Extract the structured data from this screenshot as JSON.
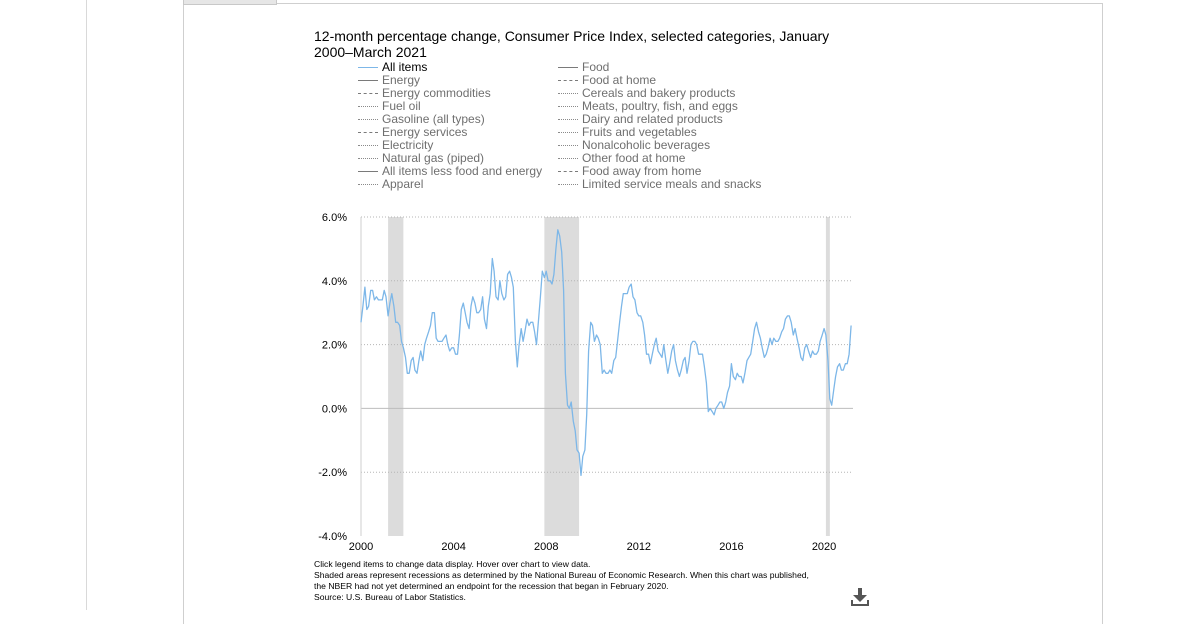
{
  "title": "12-month percentage change, Consumer Price Index, selected categories, January 2000–March 2021",
  "legend": {
    "left": [
      {
        "label": "All items",
        "style": "blue",
        "active": true
      },
      {
        "label": "Energy",
        "style": "solid"
      },
      {
        "label": "Energy commodities",
        "style": "dashed"
      },
      {
        "label": "Fuel oil",
        "style": "dotted"
      },
      {
        "label": "Gasoline (all types)",
        "style": "dotted"
      },
      {
        "label": "Energy services",
        "style": "dashed"
      },
      {
        "label": "Electricity",
        "style": "dotted"
      },
      {
        "label": "Natural gas (piped)",
        "style": "dotted"
      },
      {
        "label": "All items less food and energy",
        "style": "solid"
      },
      {
        "label": "Apparel",
        "style": "dotted"
      }
    ],
    "right": [
      {
        "label": "Food",
        "style": "solid"
      },
      {
        "label": "Food at home",
        "style": "dashed"
      },
      {
        "label": "Cereals and bakery products",
        "style": "dotted"
      },
      {
        "label": "Meats, poultry, fish, and eggs",
        "style": "dotted"
      },
      {
        "label": "Dairy and related products",
        "style": "dotted"
      },
      {
        "label": "Fruits and vegetables",
        "style": "dotted"
      },
      {
        "label": "Nonalcoholic beverages",
        "style": "dotted"
      },
      {
        "label": "Other food at home",
        "style": "dotted"
      },
      {
        "label": "Food away from home",
        "style": "dashed"
      },
      {
        "label": "Limited service meals and snacks",
        "style": "dotted"
      }
    ]
  },
  "notes": {
    "line1": "Click legend items to change data display. Hover over chart to view data.",
    "line2": "Shaded areas represent recessions as determined by the National Bureau of Economic Research. When this chart was published,",
    "line3": "the NBER had not yet determined an endpoint for the recession that began in February 2020.",
    "source": "Source: U.S. Bureau of Labor Statistics."
  },
  "download_icon": "download-icon",
  "colors": {
    "series": "#7db7e8",
    "recession": "#dcdcdc",
    "grid": "#b5b5b5",
    "zero_line": "#bdbdbd"
  },
  "chart_data": {
    "type": "line",
    "ylabel_format": "percent",
    "ylim": [
      -4,
      6
    ],
    "yticks": [
      "6.0%",
      "4.0%",
      "2.0%",
      "0.0%",
      "-2.0%",
      "-4.0%"
    ],
    "ytick_values": [
      6,
      4,
      2,
      0,
      -2,
      -4
    ],
    "xlim": [
      2000.0,
      2021.25
    ],
    "xticks": [
      "2000",
      "2004",
      "2008",
      "2012",
      "2016",
      "2020"
    ],
    "xtick_values": [
      2000,
      2004,
      2008,
      2012,
      2016,
      2020
    ],
    "recessions": [
      [
        2001.17,
        2001.83
      ],
      [
        2007.92,
        2009.42
      ],
      [
        2020.08,
        2020.25
      ]
    ],
    "grid": "horizontal dotted",
    "series": [
      {
        "name": "All items",
        "x": [
          2000.0,
          2000.08,
          2000.17,
          2000.25,
          2000.33,
          2000.42,
          2000.5,
          2000.58,
          2000.67,
          2000.75,
          2000.83,
          2000.92,
          2001.0,
          2001.08,
          2001.17,
          2001.25,
          2001.33,
          2001.42,
          2001.5,
          2001.58,
          2001.67,
          2001.75,
          2001.83,
          2001.92,
          2002.0,
          2002.08,
          2002.17,
          2002.25,
          2002.33,
          2002.42,
          2002.5,
          2002.58,
          2002.67,
          2002.75,
          2002.83,
          2002.92,
          2003.0,
          2003.08,
          2003.17,
          2003.25,
          2003.33,
          2003.42,
          2003.5,
          2003.58,
          2003.67,
          2003.75,
          2003.83,
          2003.92,
          2004.0,
          2004.08,
          2004.17,
          2004.25,
          2004.33,
          2004.42,
          2004.5,
          2004.58,
          2004.67,
          2004.75,
          2004.83,
          2004.92,
          2005.0,
          2005.08,
          2005.17,
          2005.25,
          2005.33,
          2005.42,
          2005.5,
          2005.58,
          2005.67,
          2005.75,
          2005.83,
          2005.92,
          2006.0,
          2006.08,
          2006.17,
          2006.25,
          2006.33,
          2006.42,
          2006.5,
          2006.58,
          2006.67,
          2006.75,
          2006.83,
          2006.92,
          2007.0,
          2007.08,
          2007.17,
          2007.25,
          2007.33,
          2007.42,
          2007.5,
          2007.58,
          2007.67,
          2007.75,
          2007.83,
          2007.92,
          2008.0,
          2008.08,
          2008.17,
          2008.25,
          2008.33,
          2008.42,
          2008.5,
          2008.58,
          2008.67,
          2008.75,
          2008.83,
          2008.92,
          2009.0,
          2009.08,
          2009.17,
          2009.25,
          2009.33,
          2009.42,
          2009.5,
          2009.58,
          2009.67,
          2009.75,
          2009.83,
          2009.92,
          2010.0,
          2010.08,
          2010.17,
          2010.25,
          2010.33,
          2010.42,
          2010.5,
          2010.58,
          2010.67,
          2010.75,
          2010.83,
          2010.92,
          2011.0,
          2011.08,
          2011.17,
          2011.25,
          2011.33,
          2011.42,
          2011.5,
          2011.58,
          2011.67,
          2011.75,
          2011.83,
          2011.92,
          2012.0,
          2012.08,
          2012.17,
          2012.25,
          2012.33,
          2012.42,
          2012.5,
          2012.58,
          2012.67,
          2012.75,
          2012.83,
          2012.92,
          2013.0,
          2013.08,
          2013.17,
          2013.25,
          2013.33,
          2013.42,
          2013.5,
          2013.58,
          2013.67,
          2013.75,
          2013.83,
          2013.92,
          2014.0,
          2014.08,
          2014.17,
          2014.25,
          2014.33,
          2014.42,
          2014.5,
          2014.58,
          2014.67,
          2014.75,
          2014.83,
          2014.92,
          2015.0,
          2015.08,
          2015.17,
          2015.25,
          2015.33,
          2015.42,
          2015.5,
          2015.58,
          2015.67,
          2015.75,
          2015.83,
          2015.92,
          2016.0,
          2016.08,
          2016.17,
          2016.25,
          2016.33,
          2016.42,
          2016.5,
          2016.58,
          2016.67,
          2016.75,
          2016.83,
          2016.92,
          2017.0,
          2017.08,
          2017.17,
          2017.25,
          2017.33,
          2017.42,
          2017.5,
          2017.58,
          2017.67,
          2017.75,
          2017.83,
          2017.92,
          2018.0,
          2018.08,
          2018.17,
          2018.25,
          2018.33,
          2018.42,
          2018.5,
          2018.58,
          2018.67,
          2018.75,
          2018.83,
          2018.92,
          2019.0,
          2019.08,
          2019.17,
          2019.25,
          2019.33,
          2019.42,
          2019.5,
          2019.58,
          2019.67,
          2019.75,
          2019.83,
          2019.92,
          2020.0,
          2020.08,
          2020.17,
          2020.25,
          2020.33,
          2020.42,
          2020.5,
          2020.58,
          2020.67,
          2020.75,
          2020.83,
          2020.92,
          2021.0,
          2021.08,
          2021.17
        ],
        "values": [
          2.7,
          3.2,
          3.8,
          3.1,
          3.2,
          3.7,
          3.7,
          3.4,
          3.5,
          3.4,
          3.4,
          3.4,
          3.7,
          3.5,
          2.9,
          3.3,
          3.6,
          3.2,
          2.7,
          2.7,
          2.6,
          2.1,
          1.9,
          1.6,
          1.1,
          1.1,
          1.5,
          1.6,
          1.2,
          1.1,
          1.5,
          1.8,
          1.5,
          2.0,
          2.2,
          2.4,
          2.6,
          3.0,
          3.0,
          2.2,
          2.1,
          2.1,
          2.1,
          2.2,
          2.3,
          2.0,
          1.8,
          1.9,
          1.9,
          1.7,
          1.7,
          2.3,
          3.1,
          3.3,
          3.0,
          2.7,
          2.5,
          3.2,
          3.5,
          3.3,
          3.0,
          3.0,
          3.1,
          3.5,
          2.8,
          2.5,
          3.2,
          3.6,
          4.7,
          4.3,
          3.5,
          3.4,
          4.0,
          3.6,
          3.4,
          3.5,
          4.2,
          4.3,
          4.1,
          3.8,
          2.1,
          1.3,
          2.0,
          2.5,
          2.1,
          2.4,
          2.8,
          2.6,
          2.7,
          2.7,
          2.4,
          2.0,
          2.8,
          3.5,
          4.3,
          4.1,
          4.3,
          4.0,
          4.0,
          3.9,
          4.2,
          5.0,
          5.6,
          5.4,
          4.9,
          3.7,
          1.1,
          0.1,
          0.0,
          0.2,
          -0.4,
          -0.7,
          -1.3,
          -1.4,
          -2.1,
          -1.5,
          -1.3,
          -0.2,
          1.8,
          2.7,
          2.6,
          2.1,
          2.3,
          2.2,
          2.0,
          1.1,
          1.2,
          1.1,
          1.1,
          1.2,
          1.1,
          1.5,
          1.6,
          2.1,
          2.7,
          3.2,
          3.6,
          3.6,
          3.6,
          3.8,
          3.9,
          3.5,
          3.4,
          3.0,
          2.9,
          2.9,
          2.7,
          2.3,
          1.7,
          1.7,
          1.4,
          1.7,
          2.0,
          2.2,
          1.8,
          1.7,
          1.6,
          2.0,
          1.5,
          1.1,
          1.4,
          1.8,
          2.0,
          1.5,
          1.2,
          1.0,
          1.2,
          1.5,
          1.6,
          1.1,
          1.5,
          2.0,
          2.1,
          2.1,
          2.0,
          1.7,
          1.7,
          1.7,
          1.3,
          0.8,
          -0.1,
          0.0,
          -0.1,
          -0.2,
          0.0,
          0.1,
          0.2,
          0.2,
          0.0,
          0.2,
          0.5,
          0.7,
          1.4,
          1.0,
          0.9,
          1.1,
          1.0,
          1.0,
          0.8,
          1.1,
          1.5,
          1.6,
          1.7,
          2.1,
          2.5,
          2.7,
          2.4,
          2.2,
          1.9,
          1.6,
          1.7,
          1.9,
          2.2,
          2.0,
          2.2,
          2.1,
          2.1,
          2.2,
          2.4,
          2.5,
          2.8,
          2.9,
          2.9,
          2.7,
          2.3,
          2.5,
          2.2,
          1.9,
          1.6,
          1.5,
          1.9,
          2.0,
          1.8,
          1.6,
          1.8,
          1.7,
          1.7,
          1.8,
          2.1,
          2.3,
          2.5,
          2.3,
          1.5,
          0.3,
          0.1,
          0.6,
          1.0,
          1.3,
          1.4,
          1.2,
          1.2,
          1.4,
          1.4,
          1.7,
          2.6
        ]
      }
    ]
  }
}
